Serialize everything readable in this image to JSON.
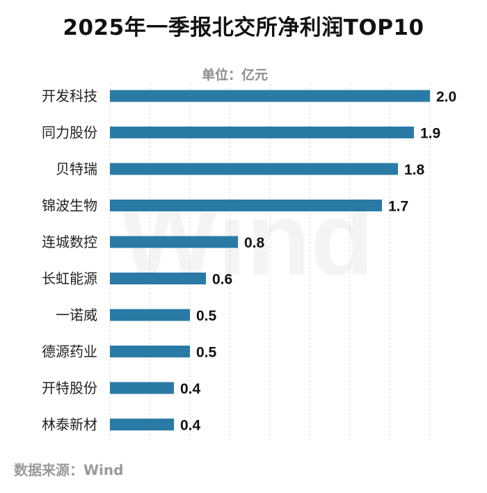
{
  "chart_data": {
    "type": "bar",
    "orientation": "horizontal",
    "title": "2025年一季报北交所净利润TOP10",
    "unit_label": "单位：亿元",
    "categories": [
      "开发科技",
      "同力股份",
      "贝特瑞",
      "锦波生物",
      "连城数控",
      "长虹能源",
      "一诺威",
      "德源药业",
      "开特股份",
      "林泰新材"
    ],
    "values": [
      2.0,
      1.9,
      1.8,
      1.7,
      0.8,
      0.6,
      0.5,
      0.5,
      0.4,
      0.4
    ],
    "xlim": [
      0,
      2.0
    ],
    "grid": true,
    "bar_color": "#2a7aa6",
    "watermark": "Wind"
  },
  "source": "数据来源：Wind"
}
